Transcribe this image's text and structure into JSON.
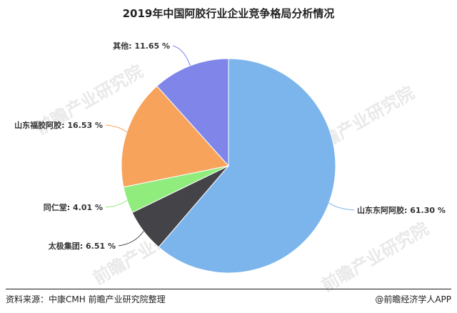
{
  "chart_data": {
    "type": "pie",
    "title": "2019年中国阿胶行业企业竞争格局分析情况",
    "slices": [
      {
        "label": "山东东阿阿胶",
        "value": 61.3,
        "display": "山东东阿阿胶: 61.30 %",
        "color": "#7cb5ec"
      },
      {
        "label": "太极集团",
        "value": 6.51,
        "display": "太极集团: 6.51 %",
        "color": "#434348"
      },
      {
        "label": "同仁堂",
        "value": 4.01,
        "display": "同仁堂: 4.01 %",
        "color": "#90ed7d"
      },
      {
        "label": "山东福胶阿胶",
        "value": 16.53,
        "display": "山东福胶阿胶: 16.53 %",
        "color": "#f7a35c"
      },
      {
        "label": "其他",
        "value": 11.65,
        "display": "其他: 11.65 %",
        "color": "#8085e9"
      }
    ]
  },
  "footer": {
    "source": "资料来源：中康CMH 前瞻产业研究院整理",
    "brand": "@前瞻经济学人APP"
  },
  "watermark": "前瞻产业研究院"
}
